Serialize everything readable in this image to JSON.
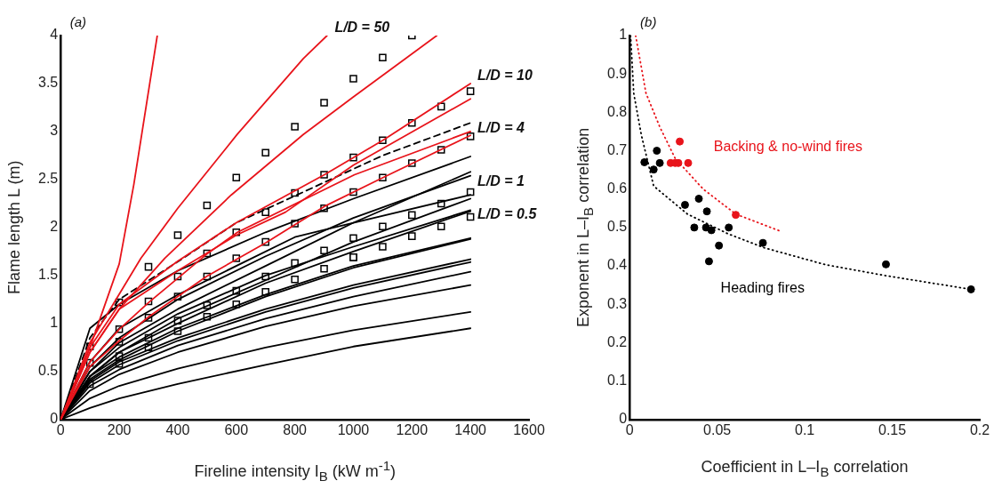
{
  "chart_data": [
    {
      "type": "line",
      "xlabel": "Fireline intensity I$_{B}$ (kW m$^{-1}$)",
      "ylabel": "Flame length L (m)",
      "xlim": [
        0,
        1600
      ],
      "ylim": [
        0,
        4
      ],
      "xticks": [
        0,
        200,
        400,
        600,
        800,
        1000,
        1200,
        1400,
        1600
      ],
      "yticks": [
        0,
        0.5,
        1,
        1.5,
        2,
        2.5,
        3,
        3.5,
        4
      ],
      "annotations": [
        "(a)",
        "L/D = 50",
        "L/D = 10",
        "L/D = 4",
        "L/D = 1",
        "L/D = 0.5"
      ],
      "series": [
        {
          "type": "line",
          "color": "#e8141b",
          "x": [
            0,
            100,
            200,
            250,
            330
          ],
          "values": [
            0,
            0.75,
            1.62,
            2.45,
            4.0
          ]
        },
        {
          "type": "line",
          "color": "#e8141b",
          "x": [
            0,
            100,
            274,
            400,
            603,
            829,
            910
          ],
          "values": [
            0,
            0.8,
            1.68,
            2.2,
            2.97,
            3.76,
            4.0
          ]
        },
        {
          "type": "line",
          "color": "#e8141b",
          "x": [
            0,
            100,
            200,
            356,
            583,
            829,
            1000,
            1285
          ],
          "values": [
            0,
            0.7,
            1.15,
            1.68,
            2.34,
            2.97,
            3.36,
            4.0
          ]
        },
        {
          "type": "line",
          "color": "#e8141b",
          "x": [
            0,
            100,
            200,
            400,
            600,
            901,
            1101,
            1400
          ],
          "values": [
            0,
            0.75,
            1.2,
            1.65,
            2.05,
            2.55,
            2.91,
            3.5
          ]
        },
        {
          "type": "line",
          "color": "#e8141b",
          "x": [
            0,
            100,
            200,
            400,
            600,
            768,
            1000,
            1400
          ],
          "values": [
            0,
            0.7,
            1.15,
            1.55,
            1.92,
            2.16,
            2.65,
            3.34
          ]
        },
        {
          "type": "line",
          "color": "#e8141b",
          "x": [
            0,
            100,
            200,
            301,
            498,
            604,
            1004,
            1400
          ],
          "values": [
            0,
            0.6,
            0.94,
            1.22,
            1.72,
            1.95,
            2.55,
            3.0
          ]
        },
        {
          "type": "line",
          "color": "#e8141b",
          "x": [
            0,
            100,
            200,
            301,
            498,
            700,
            901,
            1101,
            1400
          ],
          "values": [
            0,
            0.55,
            0.82,
            1.07,
            1.49,
            1.84,
            2.22,
            2.52,
            2.96
          ]
        },
        {
          "type": "line",
          "color": "#000000",
          "line_style": "dashed",
          "x": [
            0,
            100,
            200,
            418,
            600,
            829,
            1100,
            1400
          ],
          "values": [
            0,
            0.85,
            1.25,
            1.68,
            2.05,
            2.37,
            2.75,
            3.09
          ]
        },
        {
          "type": "line",
          "color": "#000000",
          "x": [
            0,
            100,
            200,
            400,
            700,
            1000,
            1400
          ],
          "values": [
            0,
            0.95,
            1.2,
            1.55,
            1.95,
            2.3,
            2.74
          ]
        },
        {
          "type": "line",
          "color": "#000000",
          "x": [
            0,
            100,
            200,
            400,
            700,
            1000,
            1400
          ],
          "values": [
            0,
            0.5,
            0.8,
            1.15,
            1.6,
            2.05,
            2.58
          ]
        },
        {
          "type": "line",
          "color": "#000000",
          "x": [
            0,
            100,
            200,
            400,
            700,
            1000,
            1400
          ],
          "values": [
            0,
            0.55,
            0.85,
            1.25,
            1.7,
            2.1,
            2.54
          ]
        },
        {
          "type": "line",
          "color": "#000000",
          "x": [
            0,
            100,
            200,
            400,
            800,
            1000,
            1400
          ],
          "values": [
            0,
            0.6,
            0.95,
            1.3,
            1.9,
            2.05,
            2.34
          ]
        },
        {
          "type": "line",
          "color": "#000000",
          "x": [
            0,
            100,
            200,
            400,
            700,
            1000,
            1400
          ],
          "values": [
            0,
            0.45,
            0.7,
            1.05,
            1.45,
            1.85,
            2.3
          ]
        },
        {
          "type": "line",
          "color": "#000000",
          "x": [
            0,
            100,
            200,
            400,
            700,
            1000,
            1400
          ],
          "values": [
            0,
            0.5,
            0.75,
            1.1,
            1.5,
            1.8,
            2.18
          ]
        },
        {
          "type": "line",
          "color": "#000000",
          "x": [
            0,
            100,
            200,
            400,
            700,
            1000,
            1400
          ],
          "values": [
            0,
            0.45,
            0.7,
            1.0,
            1.42,
            1.75,
            2.17
          ]
        },
        {
          "type": "line",
          "color": "#000000",
          "x": [
            0,
            100,
            200,
            400,
            700,
            1000,
            1400
          ],
          "values": [
            0,
            0.45,
            0.65,
            0.95,
            1.3,
            1.6,
            1.89
          ]
        },
        {
          "type": "line",
          "color": "#000000",
          "x": [
            0,
            100,
            200,
            400,
            700,
            1000,
            1400
          ],
          "values": [
            0,
            0.42,
            0.62,
            0.92,
            1.28,
            1.58,
            1.88
          ]
        },
        {
          "type": "line",
          "color": "#000000",
          "x": [
            0,
            100,
            200,
            400,
            700,
            1000,
            1400
          ],
          "values": [
            0,
            0.4,
            0.6,
            0.85,
            1.15,
            1.4,
            1.67
          ]
        },
        {
          "type": "line",
          "color": "#000000",
          "x": [
            0,
            100,
            200,
            400,
            700,
            1000,
            1400
          ],
          "values": [
            0,
            0.38,
            0.57,
            0.82,
            1.12,
            1.37,
            1.64
          ]
        },
        {
          "type": "line",
          "color": "#000000",
          "x": [
            0,
            100,
            200,
            400,
            700,
            1000,
            1400
          ],
          "values": [
            0,
            0.35,
            0.52,
            0.77,
            1.05,
            1.28,
            1.54
          ]
        },
        {
          "type": "line",
          "color": "#000000",
          "x": [
            0,
            100,
            200,
            400,
            700,
            1000,
            1400
          ],
          "values": [
            0,
            0.3,
            0.47,
            0.7,
            0.97,
            1.18,
            1.4
          ]
        },
        {
          "type": "line",
          "color": "#000000",
          "x": [
            0,
            100,
            200,
            400,
            700,
            1000,
            1400
          ],
          "values": [
            0,
            0.22,
            0.35,
            0.53,
            0.75,
            0.93,
            1.12
          ]
        },
        {
          "type": "line",
          "color": "#000000",
          "x": [
            0,
            100,
            200,
            400,
            700,
            1000,
            1400
          ],
          "values": [
            0,
            0.12,
            0.22,
            0.37,
            0.57,
            0.76,
            0.95
          ]
        },
        {
          "type": "scatter",
          "marker": "square",
          "color": "#000000",
          "x": [
            100,
            100,
            100,
            200,
            200,
            200,
            200,
            200,
            300,
            300,
            300,
            300,
            300,
            400,
            400,
            400,
            400,
            400,
            500,
            500,
            500,
            500,
            500,
            600,
            600,
            600,
            600,
            600,
            700,
            700,
            700,
            700,
            700,
            800,
            800,
            800,
            800,
            800,
            900,
            900,
            900,
            900,
            900,
            1000,
            1000,
            1000,
            1000,
            1000,
            1000,
            1100,
            1100,
            1100,
            1100,
            1100,
            1200,
            1200,
            1200,
            1200,
            1200,
            1300,
            1300,
            1300,
            1300,
            1400,
            1400,
            1400,
            1400
          ],
          "values": [
            0.76,
            0.59,
            0.37,
            1.22,
            0.94,
            0.81,
            0.66,
            0.58,
            1.59,
            1.23,
            1.06,
            0.85,
            0.75,
            1.92,
            1.49,
            1.28,
            1.03,
            0.92,
            2.23,
            1.73,
            1.49,
            1.19,
            1.07,
            2.52,
            1.95,
            1.68,
            1.34,
            1.2,
            2.78,
            2.16,
            1.85,
            1.49,
            1.33,
            3.05,
            2.36,
            2.04,
            1.63,
            1.46,
            3.3,
            2.55,
            2.2,
            1.76,
            1.57,
            3.55,
            2.73,
            2.37,
            1.89,
            1.69,
            1.69,
            3.77,
            2.91,
            2.52,
            2.01,
            1.8,
            4.0,
            3.09,
            2.67,
            2.13,
            1.91,
            3.26,
            2.81,
            2.25,
            2.01,
            3.42,
            2.95,
            2.37,
            2.11
          ]
        }
      ]
    },
    {
      "type": "scatter",
      "xlabel": "Coefficient in L–I$_{B}$ correlation",
      "ylabel": "Exponent in L–I$_{B}$ correlation",
      "xlim": [
        0,
        0.2
      ],
      "ylim": [
        0,
        1
      ],
      "xticks": [
        0,
        0.05,
        0.1,
        0.15,
        0.2
      ],
      "yticks": [
        0,
        0.1,
        0.2,
        0.3,
        0.4,
        0.5,
        0.6,
        0.7,
        0.8,
        0.9,
        1
      ],
      "annotations": [
        "(b)"
      ],
      "series": [
        {
          "type": "line",
          "color": "#000000",
          "line_style": "dotted",
          "x": [
            0.0005,
            0.0015,
            0.0023,
            0.0067,
            0.0137,
            0.033,
            0.056,
            0.077,
            0.112,
            0.147,
            0.195
          ],
          "values": [
            1.0,
            0.92,
            0.85,
            0.74,
            0.608,
            0.535,
            0.484,
            0.447,
            0.403,
            0.374,
            0.339
          ]
        },
        {
          "type": "line",
          "color": "#e8141b",
          "line_style": "dotted",
          "x": [
            0.0034,
            0.0093,
            0.0172,
            0.026,
            0.042,
            0.0606,
            0.0858
          ],
          "values": [
            1.0,
            0.85,
            0.762,
            0.68,
            0.6,
            0.535,
            0.491
          ]
        },
        {
          "name": "Heading fires",
          "marker": "circle",
          "color": "#000000",
          "x": [
            0.0084,
            0.0155,
            0.0172,
            0.0137,
            0.0316,
            0.0395,
            0.0441,
            0.0369,
            0.0436,
            0.0467,
            0.0566,
            0.051,
            0.0453,
            0.0761,
            0.1464,
            0.195
          ],
          "values": [
            0.67,
            0.7,
            0.668,
            0.651,
            0.559,
            0.575,
            0.542,
            0.5,
            0.5,
            0.493,
            0.5,
            0.453,
            0.412,
            0.46,
            0.404,
            0.339
          ]
        },
        {
          "name": "Backing & no-wind fires",
          "marker": "circle",
          "color": "#e8141b",
          "x": [
            0.0286,
            0.0234,
            0.026,
            0.0278,
            0.0334,
            0.0606
          ],
          "values": [
            0.724,
            0.668,
            0.668,
            0.668,
            0.668,
            0.533
          ]
        }
      ]
    }
  ]
}
